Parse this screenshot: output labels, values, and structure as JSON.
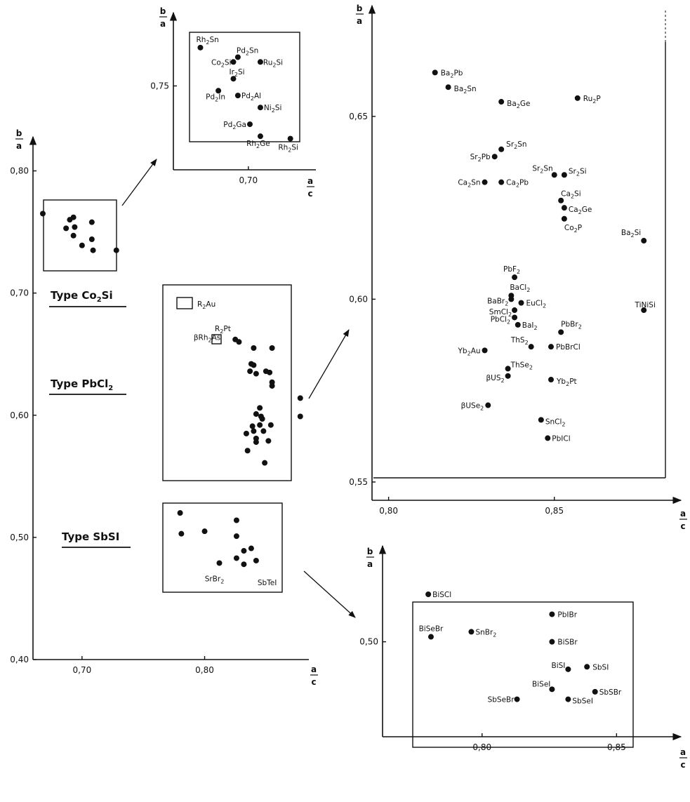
{
  "chart_data": [
    {
      "id": "overview",
      "type": "scatter",
      "xlabel": "a/c",
      "ylabel": "b/a",
      "x_ticks": [
        "0,70",
        "0,80"
      ],
      "y_ticks": [
        "0,80",
        "0,70",
        "0,60",
        "0,50",
        "0,40"
      ],
      "xlim": [
        0.66,
        0.885
      ],
      "ylim": [
        0.4,
        0.825
      ],
      "groups": [
        {
          "label": "Type Co2Si"
        },
        {
          "label": "Type PbCl2"
        },
        {
          "label": "Type SbSI"
        }
      ],
      "series": [
        {
          "points": [
            [
              0.668,
              0.765
            ],
            [
              0.687,
              0.753
            ],
            [
              0.69,
              0.76
            ],
            [
              0.693,
              0.762
            ],
            [
              0.694,
              0.754
            ],
            [
              0.7,
              0.739
            ],
            [
              0.693,
              0.747
            ],
            [
              0.708,
              0.758
            ],
            [
              0.708,
              0.744
            ],
            [
              0.709,
              0.735
            ],
            [
              0.728,
              0.735
            ]
          ]
        },
        {
          "points": [
            [
              0.825,
              0.662
            ],
            [
              0.828,
              0.66
            ],
            [
              0.84,
              0.655
            ],
            [
              0.855,
              0.655
            ],
            [
              0.838,
              0.642
            ],
            [
              0.84,
              0.641
            ],
            [
              0.837,
              0.636
            ],
            [
              0.842,
              0.634
            ],
            [
              0.85,
              0.636
            ],
            [
              0.853,
              0.635
            ],
            [
              0.855,
              0.627
            ],
            [
              0.855,
              0.624
            ],
            [
              0.878,
              0.614
            ],
            [
              0.878,
              0.599
            ],
            [
              0.845,
              0.606
            ],
            [
              0.842,
              0.601
            ],
            [
              0.846,
              0.599
            ],
            [
              0.847,
              0.597
            ],
            [
              0.839,
              0.591
            ],
            [
              0.845,
              0.592
            ],
            [
              0.84,
              0.587
            ],
            [
              0.848,
              0.587
            ],
            [
              0.854,
              0.592
            ],
            [
              0.834,
              0.585
            ],
            [
              0.842,
              0.581
            ],
            [
              0.842,
              0.578
            ],
            [
              0.852,
              0.579
            ],
            [
              0.835,
              0.571
            ],
            [
              0.849,
              0.561
            ]
          ]
        },
        {
          "points": [
            [
              0.78,
              0.52
            ],
            [
              0.781,
              0.503
            ],
            [
              0.8,
              0.505
            ],
            [
              0.812,
              0.479
            ],
            [
              0.826,
              0.514
            ],
            [
              0.826,
              0.501
            ],
            [
              0.826,
              0.483
            ],
            [
              0.832,
              0.489
            ],
            [
              0.838,
              0.491
            ],
            [
              0.832,
              0.478
            ],
            [
              0.842,
              0.481
            ]
          ]
        }
      ],
      "labeled_points": [
        {
          "label": "SrBr2",
          "x": 0.808,
          "y": 0.464
        },
        {
          "label": "SbTeI",
          "x": 0.851,
          "y": 0.461
        }
      ],
      "markers": [
        {
          "label": "R2Au",
          "x": 0.782,
          "y": 0.693
        },
        {
          "label": "R2Pt",
          "x": 0.82,
          "y": 0.666
        },
        {
          "label": "βRh2As",
          "x": 0.813,
          "y": 0.664
        }
      ]
    },
    {
      "id": "co2si-detail",
      "type": "scatter",
      "xlabel": "a/c",
      "ylabel": "b/a",
      "x_ticks": [
        "0,70"
      ],
      "y_ticks": [
        "0,75"
      ],
      "xlim": [
        0.65,
        0.745
      ],
      "ylim": [
        0.715,
        0.78
      ],
      "points": [
        {
          "label": "Rh2Sn",
          "x": 0.668,
          "y": 0.766
        },
        {
          "label": "Pd2Sn",
          "x": 0.693,
          "y": 0.762
        },
        {
          "label": "Co2Si",
          "x": 0.69,
          "y": 0.76
        },
        {
          "label": "Ru2Si",
          "x": 0.708,
          "y": 0.76
        },
        {
          "label": "Ir2Si",
          "x": 0.69,
          "y": 0.753
        },
        {
          "label": "Pd2In",
          "x": 0.68,
          "y": 0.748
        },
        {
          "label": "Pd2Al",
          "x": 0.693,
          "y": 0.746
        },
        {
          "label": "Ni2Si",
          "x": 0.708,
          "y": 0.741
        },
        {
          "label": "Pd2Ga",
          "x": 0.701,
          "y": 0.734
        },
        {
          "label": "Rh2Ge",
          "x": 0.708,
          "y": 0.729
        },
        {
          "label": "Rh2Si",
          "x": 0.728,
          "y": 0.728
        }
      ]
    },
    {
      "id": "pbcl2-detail",
      "type": "scatter",
      "xlabel": "a/c",
      "ylabel": "b/a",
      "x_ticks": [
        "0,80",
        "0,85"
      ],
      "y_ticks": [
        "0,65",
        "0,60",
        "0,55"
      ],
      "xlim": [
        0.795,
        0.885
      ],
      "ylim": [
        0.545,
        0.678
      ],
      "points": [
        {
          "label": "Ba2Pb",
          "x": 0.814,
          "y": 0.662
        },
        {
          "label": "Ba2Sn",
          "x": 0.818,
          "y": 0.658
        },
        {
          "label": "Ba2Ge",
          "x": 0.834,
          "y": 0.654
        },
        {
          "label": "Ru2P",
          "x": 0.857,
          "y": 0.655
        },
        {
          "label": "Sr2Sn",
          "x": 0.834,
          "y": 0.641
        },
        {
          "label": "Sr2Pb",
          "x": 0.832,
          "y": 0.639
        },
        {
          "label": "Sr2Sn",
          "x": 0.85,
          "y": 0.634
        },
        {
          "label": "Sr2Si",
          "x": 0.853,
          "y": 0.634
        },
        {
          "label": "Ca2Sn",
          "x": 0.829,
          "y": 0.632
        },
        {
          "label": "Ca2Pb",
          "x": 0.834,
          "y": 0.632
        },
        {
          "label": "Ca2Si",
          "x": 0.852,
          "y": 0.627
        },
        {
          "label": "Ca2Ge",
          "x": 0.853,
          "y": 0.625
        },
        {
          "label": "Co2P",
          "x": 0.853,
          "y": 0.622
        },
        {
          "label": "Ba2Si",
          "x": 0.877,
          "y": 0.616
        },
        {
          "label": "PbF2",
          "x": 0.838,
          "y": 0.606
        },
        {
          "label": "BaCl2",
          "x": 0.837,
          "y": 0.601
        },
        {
          "label": "BaBr2",
          "x": 0.837,
          "y": 0.6
        },
        {
          "label": "EuCl2",
          "x": 0.84,
          "y": 0.599
        },
        {
          "label": "SmCl2",
          "x": 0.838,
          "y": 0.597
        },
        {
          "label": "TiNiSi",
          "x": 0.877,
          "y": 0.597
        },
        {
          "label": "PbCl2",
          "x": 0.838,
          "y": 0.595
        },
        {
          "label": "BaI2",
          "x": 0.839,
          "y": 0.593
        },
        {
          "label": "PbBr2",
          "x": 0.852,
          "y": 0.591
        },
        {
          "label": "ThS2",
          "x": 0.843,
          "y": 0.587
        },
        {
          "label": "PbBrCl",
          "x": 0.849,
          "y": 0.587
        },
        {
          "label": "Yb2Au",
          "x": 0.829,
          "y": 0.586
        },
        {
          "label": "ThSe2",
          "x": 0.836,
          "y": 0.581
        },
        {
          "label": "βUS2",
          "x": 0.836,
          "y": 0.579
        },
        {
          "label": "Yb2Pt",
          "x": 0.849,
          "y": 0.578
        },
        {
          "label": "βUSe2",
          "x": 0.83,
          "y": 0.571
        },
        {
          "label": "SnCl2",
          "x": 0.846,
          "y": 0.567
        },
        {
          "label": "PbICl",
          "x": 0.848,
          "y": 0.562
        }
      ]
    },
    {
      "id": "sbsi-detail",
      "type": "scatter",
      "xlabel": "a/c",
      "ylabel": "b/a",
      "x_ticks": [
        "0,80",
        "0,85"
      ],
      "y_ticks": [
        "0,50"
      ],
      "xlim": [
        0.763,
        0.87
      ],
      "ylim": [
        0.462,
        0.535
      ],
      "points": [
        {
          "label": "BiSCl",
          "x": 0.78,
          "y": 0.519
        },
        {
          "label": "BiSeBr",
          "x": 0.781,
          "y": 0.502
        },
        {
          "label": "SnBr2",
          "x": 0.796,
          "y": 0.504
        },
        {
          "label": "PbIBr",
          "x": 0.826,
          "y": 0.511
        },
        {
          "label": "BiSBr",
          "x": 0.826,
          "y": 0.5
        },
        {
          "label": "BiSI",
          "x": 0.832,
          "y": 0.489
        },
        {
          "label": "SbSI",
          "x": 0.839,
          "y": 0.49
        },
        {
          "label": "BiSeI",
          "x": 0.826,
          "y": 0.481
        },
        {
          "label": "SbSBr",
          "x": 0.842,
          "y": 0.48
        },
        {
          "label": "SbSeBr",
          "x": 0.813,
          "y": 0.477
        },
        {
          "label": "SbSeI",
          "x": 0.832,
          "y": 0.477
        }
      ]
    }
  ]
}
